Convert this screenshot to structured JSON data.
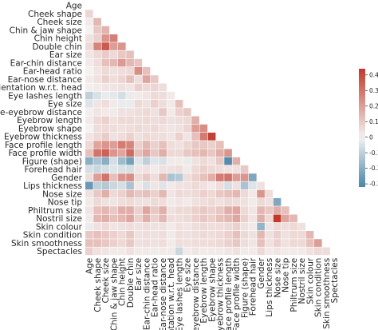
{
  "chart_data": {
    "type": "heatmap",
    "subtype": "lower-triangular correlation matrix",
    "labels": [
      "Age",
      "Cheek shape",
      "Cheek size",
      "Chin & jaw shape",
      "Chin height",
      "Double chin",
      "Ear size",
      "Ear-chin distance",
      "Ear-head ratio",
      "Ear-nose distance",
      "orientation w.r.t. head",
      "Eye lashes length",
      "Eye size",
      "Eye-eyebrow distance",
      "Eyebrow length",
      "Eyebrow shape",
      "Eyebrow thickness",
      "Face profile length",
      "Face profile width",
      "Figure (shape)",
      "Forehead hair",
      "Gender",
      "Lips thickness",
      "Nose size",
      "Nose tip",
      "Philtrum size",
      "Nostril size",
      "Skin colour",
      "Skin condition",
      "Skin smoothness",
      "Spectacles"
    ],
    "x_tick_labels": [
      "Age",
      "Cheek shape",
      "Cheek size",
      "Chin & jaw shape",
      "Chin height",
      "Double chin",
      "Ear size",
      "Ear-chin distance",
      "Ear-head ratio",
      "Ear-nose distance",
      "entation w.r.t. head",
      "Eye lashes length",
      "Eye size",
      "e-eyebrow distance",
      "Eyebrow length",
      "Eyebrow shape",
      "Eyebrow thickness",
      "Face profile length",
      "Face profile width",
      "Figure (shape)",
      "Forehead hair",
      "Gender",
      "Lips thickness",
      "Nose size",
      "Nose tip",
      "Philtrum size",
      "Nostril size",
      "Skin colour",
      "Skin condition",
      "Skin smoothness",
      "Spectacles"
    ],
    "colorbar": {
      "min": -0.32,
      "max": 0.44,
      "ticks": [
        -0.3,
        -0.2,
        -0.1,
        0.0,
        0.1,
        0.2,
        0.3,
        0.4
      ],
      "tick_labels": [
        "-0.3",
        "-0.2",
        "-0.1",
        "0",
        "0.1",
        "0.2",
        "0.3",
        "0.4"
      ]
    },
    "colors": {
      "negative": "#4a85a8",
      "neutral": "#f4f2f1",
      "positive": "#c0392b"
    },
    "grid": false,
    "mask": "upper triangle",
    "values": [
      [],
      [
        0.07
      ],
      [
        0.02,
        0.14
      ],
      [
        0.0,
        0.1,
        0.15
      ],
      [
        0.04,
        0.08,
        0.22,
        0.27
      ],
      [
        0.06,
        0.26,
        0.36,
        0.2,
        0.22
      ],
      [
        0.03,
        0.06,
        0.09,
        0.06,
        0.1,
        0.12
      ],
      [
        0.02,
        0.05,
        0.12,
        0.14,
        0.21,
        0.14,
        0.11
      ],
      [
        0.0,
        0.03,
        0.06,
        0.04,
        0.05,
        0.06,
        0.24,
        0.12
      ],
      [
        0.02,
        0.04,
        0.08,
        0.05,
        0.07,
        0.12,
        0.05,
        0.18,
        0.1
      ],
      [
        0.01,
        0.02,
        0.03,
        0.03,
        0.04,
        0.03,
        0.08,
        0.06,
        0.07,
        0.05
      ],
      [
        -0.1,
        -0.05,
        -0.02,
        -0.03,
        -0.06,
        -0.02,
        0.02,
        0.03,
        0.06,
        0.05,
        0.02
      ],
      [
        -0.04,
        0.03,
        0.05,
        0.02,
        -0.02,
        -0.02,
        0.06,
        0.04,
        0.08,
        0.05,
        0.02,
        0.12
      ],
      [
        0.01,
        0.03,
        0.02,
        0.02,
        0.04,
        0.04,
        0.05,
        0.06,
        0.04,
        0.1,
        0.02,
        0.08,
        0.1
      ],
      [
        0.02,
        0.06,
        0.08,
        0.04,
        0.06,
        0.06,
        0.05,
        0.06,
        0.05,
        0.06,
        0.04,
        0.05,
        0.06,
        0.16
      ],
      [
        0.0,
        0.05,
        0.06,
        0.05,
        0.04,
        0.05,
        0.06,
        0.05,
        0.06,
        0.04,
        0.03,
        0.04,
        0.07,
        0.2,
        0.24
      ],
      [
        0.03,
        0.06,
        0.09,
        0.04,
        0.05,
        0.08,
        0.04,
        0.06,
        0.05,
        0.05,
        0.03,
        0.08,
        0.03,
        0.12,
        0.28,
        0.42
      ],
      [
        0.06,
        0.18,
        0.22,
        0.2,
        0.28,
        0.26,
        0.08,
        0.14,
        0.08,
        0.12,
        0.05,
        0.04,
        0.07,
        0.1,
        0.1,
        0.08,
        0.12
      ],
      [
        0.12,
        0.3,
        0.34,
        0.22,
        0.18,
        0.32,
        0.12,
        0.18,
        0.1,
        0.16,
        0.06,
        0.06,
        0.1,
        0.12,
        0.14,
        0.1,
        0.16,
        0.22
      ],
      [
        -0.2,
        -0.14,
        -0.2,
        -0.06,
        -0.16,
        -0.24,
        -0.04,
        -0.1,
        -0.04,
        -0.05,
        0.02,
        0.02,
        -0.02,
        0.04,
        0.06,
        0.04,
        0.1,
        -0.3,
        0.16
      ],
      [
        -0.06,
        -0.08,
        -0.06,
        -0.04,
        -0.05,
        -0.06,
        0.03,
        0.04,
        0.02,
        0.04,
        0.04,
        0.05,
        0.02,
        0.06,
        0.08,
        0.06,
        0.05,
        0.04,
        0.04,
        0.1
      ],
      [
        0.05,
        0.2,
        0.3,
        0.12,
        0.22,
        0.24,
        0.06,
        0.1,
        0.05,
        0.14,
        -0.14,
        -0.12,
        0.05,
        0.08,
        0.12,
        0.16,
        0.28,
        0.3,
        0.2,
        0.22,
        -0.22
      ],
      [
        -0.26,
        -0.1,
        -0.12,
        -0.08,
        -0.06,
        -0.14,
        0.02,
        -0.05,
        0.03,
        -0.04,
        0.02,
        0.04,
        0.04,
        0.06,
        0.04,
        0.02,
        0.05,
        -0.06,
        0.04,
        -0.14,
        -0.04,
        0.04
      ],
      [
        0.04,
        0.1,
        0.16,
        0.06,
        0.08,
        0.14,
        0.1,
        0.12,
        0.08,
        0.14,
        0.03,
        0.06,
        0.05,
        0.06,
        0.08,
        0.06,
        0.1,
        0.12,
        0.14,
        0.06,
        0.02,
        0.22,
        0.05
      ],
      [
        0.02,
        0.06,
        0.04,
        0.03,
        0.05,
        0.06,
        0.04,
        0.04,
        0.06,
        0.05,
        0.02,
        0.03,
        0.02,
        0.04,
        0.05,
        0.06,
        0.04,
        0.06,
        0.05,
        0.04,
        0.02,
        0.06,
        0.04,
        -0.22
      ],
      [
        0.03,
        0.12,
        0.14,
        0.1,
        0.16,
        0.16,
        0.08,
        0.18,
        0.1,
        0.16,
        0.04,
        0.06,
        0.06,
        0.08,
        0.1,
        0.08,
        0.1,
        0.16,
        0.18,
        0.06,
        0.03,
        0.14,
        0.1,
        0.16,
        0.12
      ],
      [
        0.02,
        0.14,
        0.16,
        0.12,
        0.14,
        0.18,
        0.08,
        0.16,
        0.08,
        0.14,
        0.05,
        0.05,
        0.06,
        0.08,
        0.1,
        0.08,
        0.12,
        0.14,
        0.18,
        0.08,
        0.03,
        0.16,
        0.06,
        0.44,
        0.18,
        0.14
      ],
      [
        -0.02,
        0.04,
        0.06,
        0.03,
        0.04,
        0.05,
        0.04,
        0.05,
        0.04,
        0.04,
        0.02,
        0.04,
        0.03,
        0.05,
        0.06,
        0.05,
        0.05,
        0.06,
        0.08,
        0.04,
        0.02,
        -0.18,
        0.03,
        0.06,
        0.05,
        0.06,
        0.04
      ],
      [
        0.1,
        0.12,
        0.1,
        0.08,
        0.06,
        0.1,
        0.04,
        0.05,
        0.04,
        0.05,
        0.02,
        0.05,
        0.04,
        0.05,
        0.06,
        0.05,
        0.06,
        0.08,
        0.12,
        0.06,
        0.04,
        0.14,
        0.04,
        0.08,
        0.04,
        0.06,
        0.06,
        0.14
      ],
      [
        0.12,
        0.12,
        0.1,
        0.08,
        0.06,
        0.1,
        0.04,
        0.05,
        0.04,
        0.05,
        0.02,
        0.05,
        0.04,
        0.05,
        0.05,
        0.05,
        0.06,
        0.08,
        0.1,
        0.05,
        0.03,
        0.12,
        0.04,
        0.08,
        0.04,
        0.06,
        0.06,
        0.12,
        0.2
      ],
      [
        0.08,
        0.04,
        0.03,
        0.02,
        0.02,
        0.04,
        0.02,
        0.02,
        0.02,
        0.02,
        0.02,
        -0.08,
        0.02,
        0.03,
        0.02,
        0.02,
        0.02,
        0.03,
        0.04,
        0.02,
        0.02,
        0.06,
        0.02,
        0.03,
        0.02,
        0.02,
        0.02,
        0.04,
        0.06,
        0.05
      ]
    ]
  }
}
